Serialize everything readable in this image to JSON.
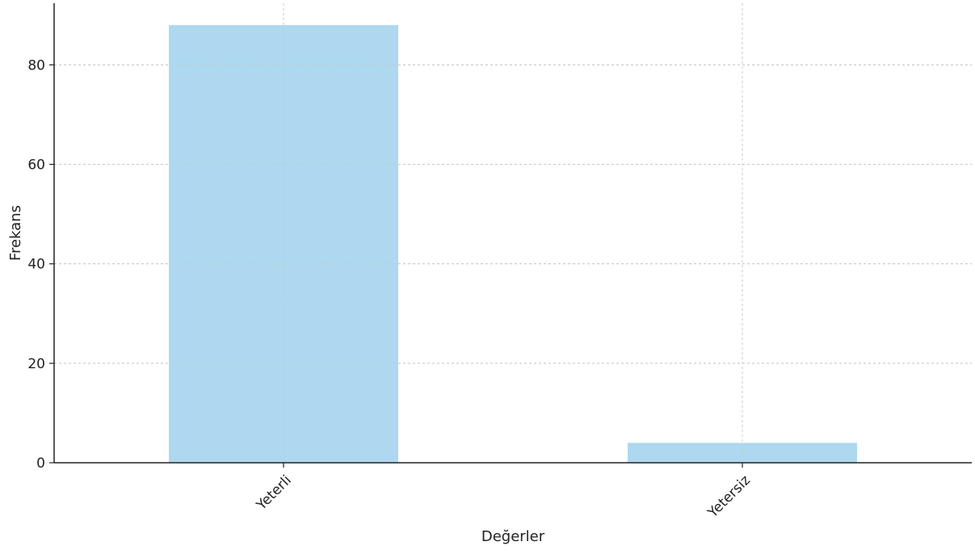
{
  "chart_data": {
    "type": "bar",
    "title": "",
    "xlabel": "Değerler",
    "ylabel": "Frekans",
    "categories": [
      "Yeterli",
      "Yetersiz"
    ],
    "values": [
      88,
      4
    ],
    "ylim": [
      0,
      92.4
    ],
    "yticks": [
      "0",
      "20",
      "40",
      "60",
      "80"
    ],
    "grid": true,
    "legend": "none",
    "bar_color": "#add8ef",
    "grid_color": "#c8c8c8",
    "axis_color": "#222222"
  }
}
